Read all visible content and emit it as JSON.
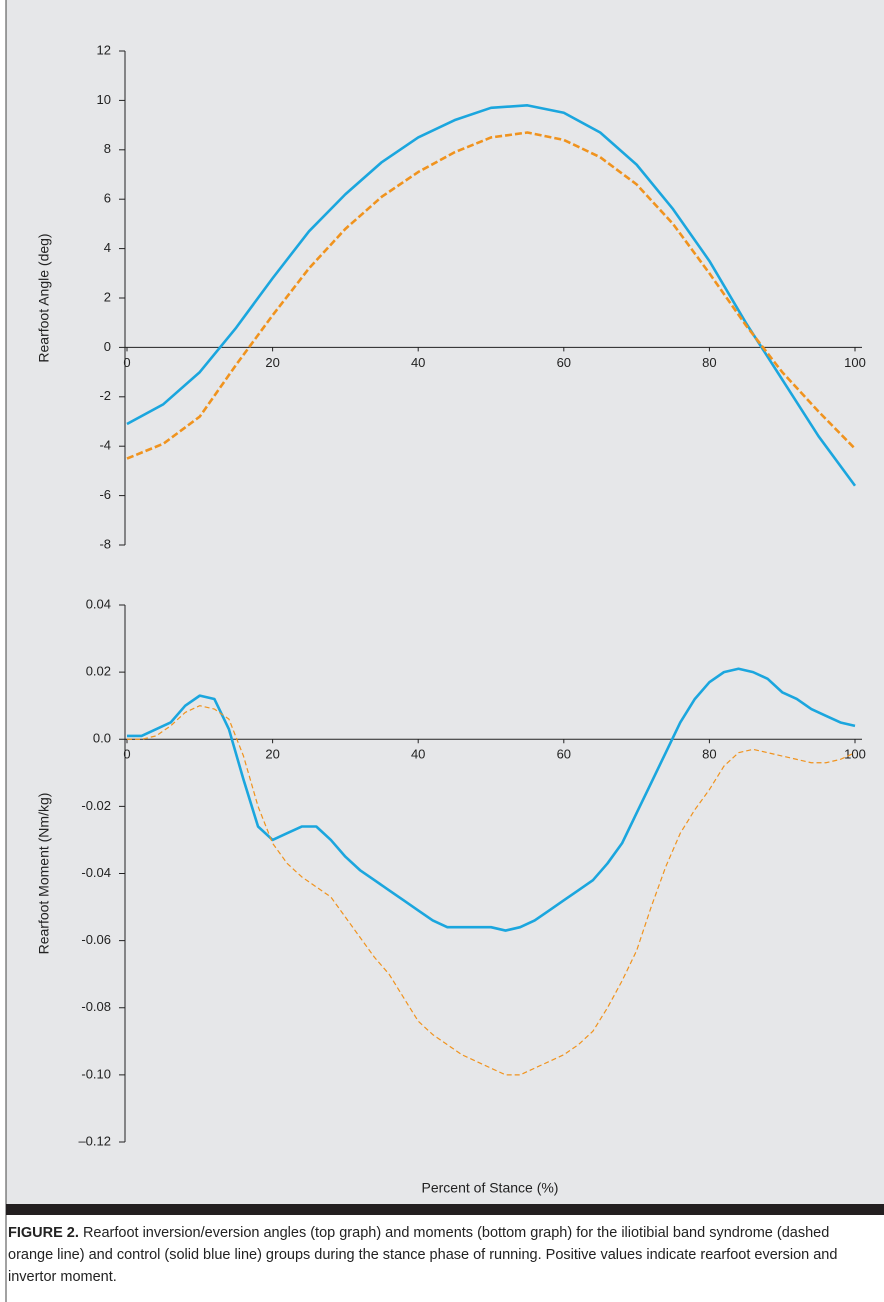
{
  "chart_data": [
    {
      "type": "line",
      "ylabel": "Rearfoot Angle (deg)",
      "x": [
        0,
        5,
        10,
        15,
        20,
        25,
        30,
        35,
        40,
        45,
        50,
        55,
        60,
        65,
        70,
        75,
        80,
        85,
        90,
        95,
        100
      ],
      "series": [
        {
          "name": "control",
          "color": "#1ba6de",
          "dashed": false,
          "values": [
            -3.1,
            -2.3,
            -1.0,
            0.8,
            2.8,
            4.7,
            6.2,
            7.5,
            8.5,
            9.2,
            9.7,
            9.8,
            9.5,
            8.7,
            7.4,
            5.6,
            3.5,
            1.0,
            -1.3,
            -3.6,
            -5.6
          ]
        },
        {
          "name": "iliotibial band syndrome",
          "color": "#f0931e",
          "dashed": true,
          "values": [
            -4.5,
            -3.9,
            -2.8,
            -0.7,
            1.3,
            3.2,
            4.8,
            6.1,
            7.1,
            7.9,
            8.5,
            8.7,
            8.4,
            7.7,
            6.6,
            5.0,
            3.0,
            0.9,
            -1.0,
            -2.6,
            -4.1
          ]
        }
      ],
      "xlim": [
        0,
        100
      ],
      "xticks": [
        0,
        20,
        40,
        60,
        80,
        100
      ],
      "ylim": [
        -8,
        12
      ],
      "yticks": [
        12,
        10,
        8,
        6,
        4,
        2,
        0,
        -2,
        -4,
        -6,
        -8
      ]
    },
    {
      "type": "line",
      "ylabel": "Rearfoot Moment (Nm/kg)",
      "xlabel": "Percent of Stance (%)",
      "x": [
        0,
        2,
        4,
        6,
        8,
        10,
        12,
        14,
        16,
        18,
        20,
        22,
        24,
        26,
        28,
        30,
        32,
        34,
        36,
        38,
        40,
        42,
        44,
        46,
        48,
        50,
        52,
        54,
        56,
        58,
        60,
        62,
        64,
        66,
        68,
        70,
        72,
        74,
        76,
        78,
        80,
        82,
        84,
        86,
        88,
        90,
        92,
        94,
        96,
        98,
        100
      ],
      "series": [
        {
          "name": "control",
          "color": "#1ba6de",
          "dashed": false,
          "values": [
            0.001,
            0.001,
            0.003,
            0.005,
            0.01,
            0.013,
            0.012,
            0.003,
            -0.012,
            -0.026,
            -0.03,
            -0.028,
            -0.026,
            -0.026,
            -0.03,
            -0.035,
            -0.039,
            -0.042,
            -0.045,
            -0.048,
            -0.051,
            -0.054,
            -0.056,
            -0.056,
            -0.056,
            -0.056,
            -0.057,
            -0.056,
            -0.054,
            -0.051,
            -0.048,
            -0.045,
            -0.042,
            -0.037,
            -0.031,
            -0.022,
            -0.013,
            -0.004,
            0.005,
            0.012,
            0.017,
            0.02,
            0.021,
            0.02,
            0.018,
            0.014,
            0.012,
            0.009,
            0.007,
            0.005,
            0.004
          ]
        },
        {
          "name": "iliotibial band syndrome",
          "color": "#f0931e",
          "dashed": true,
          "values": [
            0,
            0,
            0.001,
            0.004,
            0.008,
            0.01,
            0.009,
            0.006,
            -0.005,
            -0.02,
            -0.031,
            -0.037,
            -0.041,
            -0.044,
            -0.047,
            -0.053,
            -0.059,
            -0.065,
            -0.07,
            -0.077,
            -0.084,
            -0.088,
            -0.091,
            -0.094,
            -0.096,
            -0.098,
            -0.1,
            -0.1,
            -0.098,
            -0.096,
            -0.094,
            -0.091,
            -0.087,
            -0.08,
            -0.072,
            -0.063,
            -0.05,
            -0.038,
            -0.028,
            -0.021,
            -0.015,
            -0.008,
            -0.004,
            -0.003,
            -0.004,
            -0.005,
            -0.006,
            -0.007,
            -0.007,
            -0.006,
            -0.004
          ]
        }
      ],
      "xlim": [
        0,
        100
      ],
      "xticks": [
        0,
        20,
        40,
        60,
        80,
        100
      ],
      "ylim": [
        -0.12,
        0.04
      ],
      "yticks": [
        0.04,
        0.02,
        {
          "value": 0,
          "label": "0.0"
        },
        -0.02,
        -0.04,
        -0.06,
        -0.08,
        {
          "value": -0.1,
          "label": "-0.10"
        },
        {
          "value": -0.12,
          "label": "–0.12"
        }
      ]
    }
  ],
  "caption": {
    "label": "FIGURE 2.",
    "text": "Rearfoot inversion/eversion angles (top graph) and moments (bottom graph) for the iliotibial band syndrome (dashed orange line) and control (solid blue line) groups during the stance phase of running. Positive values indicate rearfoot eversion and invertor moment."
  }
}
